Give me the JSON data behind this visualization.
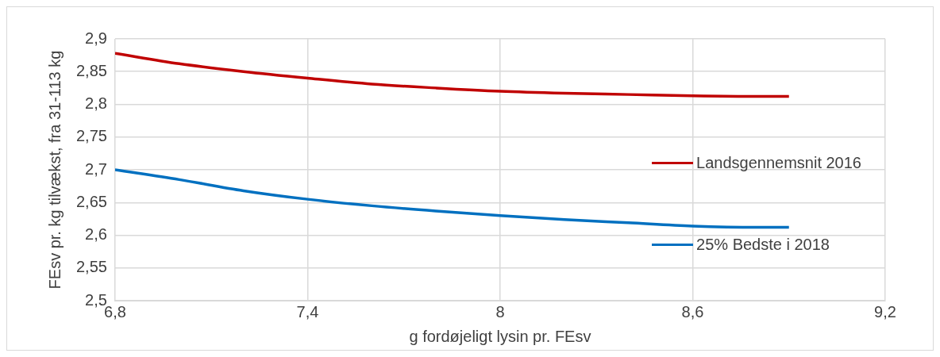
{
  "chart_data": {
    "type": "line",
    "xlabel": "g fordøjeligt lysin pr. FEsv",
    "ylabel": "FEsv pr. kg tilvækst, fra 31-113 kg",
    "xlim": [
      6.8,
      9.2
    ],
    "xticks": [
      {
        "value": 6.8,
        "label": "6,8"
      },
      {
        "value": 7.4,
        "label": "7,4"
      },
      8,
      {
        "value": 8.6,
        "label": "8,6"
      },
      {
        "value": 9.2,
        "label": "9,2"
      }
    ],
    "ylim": [
      2.5,
      2.9
    ],
    "yticks": [
      {
        "value": 2.5,
        "label": "2,5"
      },
      {
        "value": 2.55,
        "label": "2,55"
      },
      {
        "value": 2.6,
        "label": "2,6"
      },
      {
        "value": 2.65,
        "label": "2,65"
      },
      {
        "value": 2.7,
        "label": "2,7"
      },
      {
        "value": 2.75,
        "label": "2,75"
      },
      {
        "value": 2.8,
        "label": "2,8"
      },
      {
        "value": 2.85,
        "label": "2,85"
      },
      {
        "value": 2.9,
        "label": "2,9"
      }
    ],
    "x": [
      6.8,
      7.0,
      7.2,
      7.4,
      7.6,
      7.8,
      8.0,
      8.2,
      8.4,
      8.6,
      8.8,
      8.9
    ],
    "series": [
      {
        "name": "Landsgennemsnit 2016",
        "color": "#c00000",
        "values": [
          2.878,
          2.862,
          2.85,
          2.84,
          2.831,
          2.825,
          2.82,
          2.817,
          2.815,
          2.813,
          2.812,
          2.812
        ]
      },
      {
        "name": "25% Bedste i 2018",
        "color": "#0070c0",
        "values": [
          2.7,
          2.685,
          2.668,
          2.655,
          2.645,
          2.637,
          2.63,
          2.624,
          2.619,
          2.614,
          2.612,
          2.612
        ]
      }
    ],
    "grid": true,
    "legend": "right",
    "marker": "none",
    "line_style": "solid"
  }
}
